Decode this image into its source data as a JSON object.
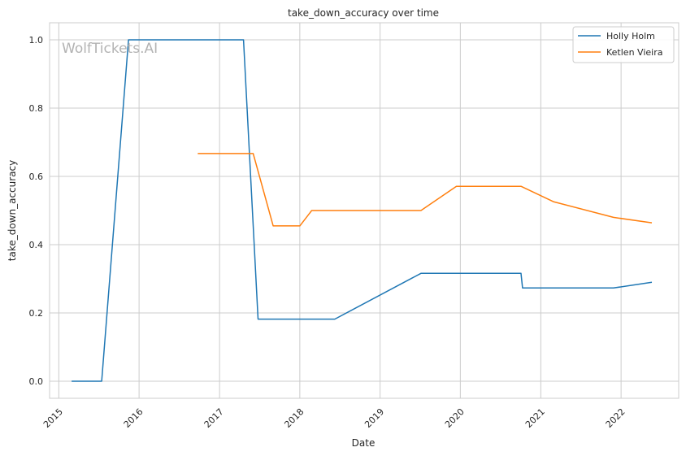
{
  "chart_data": {
    "type": "line",
    "title": "take_down_accuracy over time",
    "xlabel": "Date",
    "ylabel": "take_down_accuracy",
    "watermark": "WolfTickets.AI",
    "x_ticks": [
      "2015",
      "2016",
      "2017",
      "2018",
      "2019",
      "2020",
      "2021",
      "2022"
    ],
    "y_ticks": [
      "0.0",
      "0.2",
      "0.4",
      "0.6",
      "0.8",
      "1.0"
    ],
    "xlim": [
      "2014-11-20",
      "2022-09-20"
    ],
    "ylim": [
      -0.05,
      1.05
    ],
    "grid": true,
    "legend_position": "top-right",
    "series": [
      {
        "name": "Holly Holm",
        "color": "#1f77b4",
        "points": [
          {
            "x": "2015-02-28",
            "y": 0.0
          },
          {
            "x": "2015-07-15",
            "y": 0.0
          },
          {
            "x": "2015-11-14",
            "y": 1.0
          },
          {
            "x": "2017-04-20",
            "y": 1.0
          },
          {
            "x": "2017-06-25",
            "y": 0.182
          },
          {
            "x": "2018-06-09",
            "y": 0.182
          },
          {
            "x": "2019-07-06",
            "y": 0.316
          },
          {
            "x": "2020-10-03",
            "y": 0.316
          },
          {
            "x": "2020-10-10",
            "y": 0.273
          },
          {
            "x": "2021-11-27",
            "y": 0.273
          },
          {
            "x": "2022-05-21",
            "y": 0.29
          }
        ]
      },
      {
        "name": "Ketlen Vieira",
        "color": "#ff7f0e",
        "points": [
          {
            "x": "2016-09-24",
            "y": 0.667
          },
          {
            "x": "2017-06-03",
            "y": 0.667
          },
          {
            "x": "2017-09-02",
            "y": 0.455
          },
          {
            "x": "2018-01-01",
            "y": 0.455
          },
          {
            "x": "2018-02-24",
            "y": 0.5
          },
          {
            "x": "2019-07-06",
            "y": 0.5
          },
          {
            "x": "2019-12-14",
            "y": 0.571
          },
          {
            "x": "2020-10-03",
            "y": 0.571
          },
          {
            "x": "2021-02-27",
            "y": 0.526
          },
          {
            "x": "2021-11-27",
            "y": 0.48
          },
          {
            "x": "2022-05-21",
            "y": 0.464
          }
        ]
      }
    ]
  }
}
